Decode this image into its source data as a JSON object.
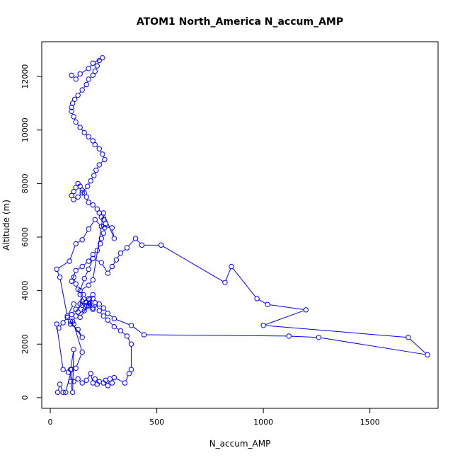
{
  "chart_data": {
    "type": "line",
    "title": "ATOM1 North_America N_accum_AMP",
    "xlabel": "N_accum_AMP",
    "ylabel": "Altitude (m)",
    "xlim": [
      -40,
      1820
    ],
    "ylim": [
      -400,
      13300
    ],
    "x_ticks": [
      0,
      500,
      1000,
      1500
    ],
    "y_ticks": [
      0,
      2000,
      4000,
      6000,
      8000,
      10000,
      12000
    ],
    "x_tick_labels": [
      "0",
      "500",
      "1000",
      "1500"
    ],
    "y_tick_labels": [
      "0",
      "2000",
      "4000",
      "6000",
      "8000",
      "10000",
      "12000"
    ],
    "grid": false,
    "marker": "open-circle",
    "series_color": "#0000ff",
    "series": [
      {
        "x": [
          35,
          45,
          60,
          72,
          100,
          95,
          105,
          110,
          95,
          120,
          150,
          110,
          95,
          150,
          130,
          95,
          105,
          120,
          180,
          200,
          180,
          140,
          130,
          155,
          185,
          200,
          140,
          110,
          80,
          45,
          30,
          90,
          120,
          150,
          180,
          210,
          240,
          290,
          300,
          250,
          200,
          180,
          140,
          160,
          180,
          200,
          240,
          270,
          290,
          310,
          330,
          360,
          400,
          430,
          520,
          820,
          850,
          970,
          1020,
          1200,
          1000,
          1680,
          1770,
          1260,
          1120,
          440,
          380,
          300,
          270,
          250,
          230,
          200,
          170,
          150,
          120,
          100,
          80,
          60,
          40,
          30,
          60,
          85,
          110,
          130,
          150,
          170,
          190,
          200,
          210,
          220,
          230,
          250,
          260,
          270,
          280,
          290,
          300,
          350,
          370,
          380,
          380,
          360,
          330,
          300,
          270,
          250,
          230,
          210,
          200,
          180,
          170,
          160,
          150,
          140,
          130,
          120,
          110,
          100,
          120,
          150,
          180,
          200,
          220,
          235,
          240,
          250,
          255,
          260,
          250,
          240,
          230,
          220,
          200,
          180,
          170,
          160,
          150,
          140,
          130,
          120,
          110,
          100,
          110,
          130,
          150,
          175,
          190,
          205,
          215,
          230,
          255,
          245,
          230,
          210,
          200,
          180,
          160,
          140,
          120,
          110,
          100,
          100,
          105,
          115,
          130,
          150,
          170,
          180,
          200,
          210,
          220,
          230,
          245,
          200,
          180,
          140,
          120,
          100
        ],
        "y": [
          200,
          500,
          200,
          200,
          1050,
          600,
          200,
          1800,
          1050,
          1100,
          1700,
          2750,
          2850,
          2250,
          2550,
          2750,
          2850,
          3050,
          3400,
          3700,
          3450,
          3000,
          3200,
          3850,
          3500,
          3850,
          3500,
          3500,
          3050,
          4500,
          4800,
          5100,
          5750,
          5900,
          6300,
          6650,
          6400,
          6350,
          5950,
          6900,
          4400,
          4200,
          4000,
          4450,
          4800,
          5200,
          5050,
          4650,
          4900,
          5150,
          5400,
          5600,
          5950,
          5700,
          5700,
          4300,
          4900,
          3700,
          3480,
          3280,
          2700,
          2250,
          1600,
          2250,
          2300,
          2350,
          2700,
          2950,
          3150,
          3350,
          3500,
          3300,
          3550,
          3450,
          3300,
          3100,
          3000,
          2800,
          2600,
          2750,
          1050,
          950,
          600,
          700,
          550,
          650,
          900,
          550,
          700,
          500,
          600,
          550,
          650,
          450,
          700,
          550,
          750,
          550,
          900,
          1050,
          2000,
          2300,
          2500,
          2650,
          2900,
          3050,
          3250,
          3550,
          3350,
          3700,
          3450,
          3250,
          3600,
          3850,
          4050,
          4250,
          4500,
          4350,
          4750,
          4900,
          5100,
          5350,
          5500,
          5750,
          5950,
          6150,
          6350,
          6500,
          6650,
          6750,
          6900,
          7050,
          7200,
          7300,
          7500,
          7650,
          7750,
          7900,
          8000,
          7850,
          7700,
          7550,
          7400,
          7500,
          7650,
          7900,
          8100,
          8300,
          8500,
          8700,
          8900,
          9100,
          9300,
          9450,
          9600,
          9750,
          9900,
          10100,
          10300,
          10500,
          10700,
          10850,
          11000,
          11150,
          11300,
          11500,
          11700,
          11900,
          12050,
          12200,
          12400,
          12600,
          12700,
          12500,
          12300,
          12100,
          11900,
          12050
        ]
      }
    ]
  }
}
